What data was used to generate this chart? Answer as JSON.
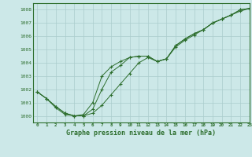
{
  "title": "Graphe pression niveau de la mer (hPa)",
  "background_color": "#cce8e8",
  "plot_background": "#cce8e8",
  "line_color": "#2d6e2d",
  "grid_color": "#aacccc",
  "xlim": [
    -0.5,
    23
  ],
  "ylim": [
    999.5,
    1008.5
  ],
  "xticks": [
    0,
    1,
    2,
    3,
    4,
    5,
    6,
    7,
    8,
    9,
    10,
    11,
    12,
    13,
    14,
    15,
    16,
    17,
    18,
    19,
    20,
    21,
    22,
    23
  ],
  "yticks": [
    1000,
    1001,
    1002,
    1003,
    1004,
    1005,
    1006,
    1007,
    1008
  ],
  "line1_x": [
    0,
    1,
    2,
    3,
    4,
    5,
    6,
    7,
    8,
    9,
    10,
    11,
    12,
    13,
    14,
    15,
    16,
    17,
    18,
    19,
    20,
    21,
    22,
    23
  ],
  "line1_y": [
    1001.8,
    1001.3,
    1000.7,
    1000.2,
    1000.0,
    1000.0,
    1000.2,
    1000.8,
    1001.6,
    1002.4,
    1003.2,
    1004.0,
    1004.4,
    1004.1,
    1004.3,
    1005.2,
    1005.7,
    1006.1,
    1006.5,
    1007.0,
    1007.3,
    1007.6,
    1007.9,
    1008.1
  ],
  "line2_x": [
    0,
    1,
    2,
    3,
    4,
    5,
    6,
    7,
    8,
    9,
    10,
    11,
    12,
    13,
    14,
    15,
    16,
    17,
    18,
    19,
    20,
    21,
    22,
    23
  ],
  "line2_y": [
    1001.8,
    1001.3,
    1000.6,
    1000.1,
    1000.0,
    1000.1,
    1001.0,
    1003.0,
    1003.7,
    1004.1,
    1004.4,
    1004.5,
    1004.5,
    1004.1,
    1004.3,
    1005.3,
    1005.8,
    1006.2,
    1006.5,
    1007.0,
    1007.3,
    1007.6,
    1008.0,
    1008.1
  ],
  "line3_x": [
    0,
    1,
    2,
    3,
    4,
    5,
    6,
    7,
    8,
    9,
    10,
    11,
    12,
    13,
    14,
    15,
    16,
    17,
    18,
    19,
    20,
    21,
    22,
    23
  ],
  "line3_y": [
    1001.8,
    1001.3,
    1000.7,
    1000.2,
    1000.0,
    1000.0,
    1000.5,
    1002.0,
    1003.3,
    1003.8,
    1004.4,
    1004.5,
    1004.5,
    1004.1,
    1004.3,
    1005.3,
    1005.8,
    1006.2,
    1006.5,
    1007.0,
    1007.3,
    1007.6,
    1008.0,
    1008.1
  ]
}
